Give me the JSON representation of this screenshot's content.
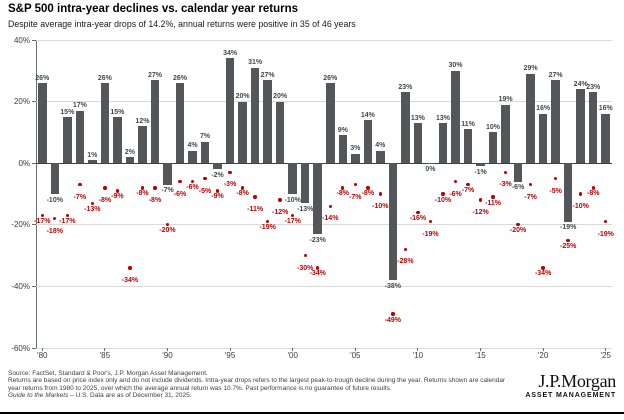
{
  "header": {
    "title": "S&P 500 intra-year declines vs. calendar year returns",
    "subtitle": "Despite average intra-year drops of 14.2%, annual returns were positive in 35 of 46 years"
  },
  "chart_data": {
    "type": "bar",
    "title": "S&P 500 intra-year declines vs. calendar year returns",
    "categories": [
      1980,
      1981,
      1982,
      1983,
      1984,
      1985,
      1986,
      1987,
      1988,
      1989,
      1990,
      1991,
      1992,
      1993,
      1994,
      1995,
      1996,
      1997,
      1998,
      1999,
      2000,
      2001,
      2002,
      2003,
      2004,
      2005,
      2006,
      2007,
      2008,
      2009,
      2010,
      2011,
      2012,
      2013,
      2014,
      2015,
      2016,
      2017,
      2018,
      2019,
      2020,
      2021,
      2022,
      2023,
      2024,
      2025
    ],
    "series": [
      {
        "name": "Calendar year return",
        "type": "bar",
        "color": "#54575a",
        "values": [
          26,
          -10,
          15,
          17,
          1,
          26,
          15,
          2,
          12,
          27,
          -7,
          26,
          4,
          7,
          -2,
          34,
          20,
          31,
          27,
          20,
          -10,
          -13,
          -23,
          26,
          9,
          3,
          14,
          4,
          -38,
          23,
          13,
          0,
          13,
          30,
          11,
          -1,
          10,
          19,
          -6,
          29,
          16,
          27,
          -19,
          24,
          23,
          16
        ]
      },
      {
        "name": "Intra-year decline",
        "type": "scatter",
        "color": "#c00000",
        "values": [
          -17,
          -18,
          -17,
          -7,
          -13,
          -8,
          -9,
          -34,
          -8,
          -8,
          -20,
          -6,
          -6,
          -5,
          -9,
          -3,
          -8,
          -11,
          -19,
          -12,
          -17,
          -30,
          -34,
          -14,
          -8,
          -7,
          -8,
          -10,
          -49,
          -28,
          -16,
          -19,
          -10,
          -6,
          -7,
          -12,
          -11,
          -3,
          -20,
          -7,
          -34,
          -5,
          -25,
          -10,
          -8,
          -19
        ]
      }
    ],
    "ylim": [
      -60,
      40
    ],
    "yticks": [
      {
        "value": 40,
        "label": "40%"
      },
      {
        "value": 20,
        "label": "20%"
      },
      {
        "value": 0,
        "label": "0%"
      },
      {
        "value": -20,
        "label": "-20%"
      },
      {
        "value": -40,
        "label": "-40%"
      },
      {
        "value": -60,
        "label": "-60%"
      }
    ],
    "xticks": [
      {
        "index": 0,
        "label": "'80"
      },
      {
        "index": 5,
        "label": "'85"
      },
      {
        "index": 10,
        "label": "'90"
      },
      {
        "index": 15,
        "label": "'95"
      },
      {
        "index": 20,
        "label": "'00"
      },
      {
        "index": 25,
        "label": "'05"
      },
      {
        "index": 30,
        "label": "'10"
      },
      {
        "index": 35,
        "label": "'15"
      },
      {
        "index": 40,
        "label": "'20"
      },
      {
        "index": 45,
        "label": "'25"
      }
    ],
    "grid": "horizontal",
    "legend": "none",
    "xlabel": "",
    "ylabel": ""
  },
  "footer": {
    "line1": "Source: FactSet, Standard & Poor's, J.P. Morgan Asset Management.",
    "line2": "Returns are based on price index only and do not include dividends. Intra-year drops refers to the largest peak-to-trough decline during the year. Returns shown are calendar year returns from 1980 to 2025, over which the average annual return was 10.7%. Past performance is no guarantee of future results.",
    "line3_italic": "Guide to the Markets",
    "line3_rest": " – U.S. Data are as of December 31, 2025.",
    "logo": {
      "brand": "J.P.Morgan",
      "division": "ASSET MANAGEMENT"
    }
  },
  "colors": {
    "bar": "#54575a",
    "bar_label": "#45484c",
    "decline": "#c00000",
    "grid": "#d9d9d9",
    "zero_line": "#3f4245",
    "rule": "#000000"
  }
}
